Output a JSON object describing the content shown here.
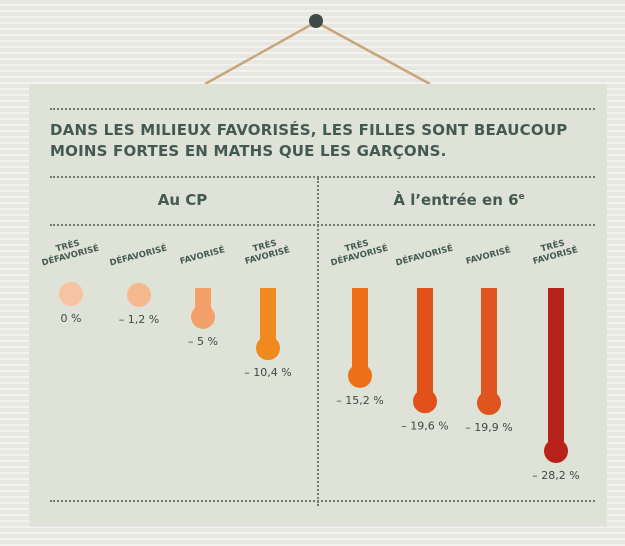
{
  "title": "DANS LES MILIEUX FAVORISÉS, LES FILLES SONT BEAUCOUP MOINS FORTES EN MATHS QUE LES GARÇONS.",
  "sections": {
    "left": "Au CP",
    "right": "À l’entrée en 6",
    "right_sup": "e"
  },
  "chart_data": [
    {
      "type": "bar",
      "title": "Au CP",
      "categories": [
        "TRÈS DÉFAVORISÉ",
        "DÉFAVORISÉ",
        "FAVORISÉ",
        "TRÈS FAVORISÉ"
      ],
      "values": [
        0,
        -1.2,
        -5,
        -10.4
      ],
      "value_labels": [
        "0 %",
        "– 1,2 %",
        "– 5 %",
        "– 10,4 %"
      ],
      "colors": [
        "#f6c3a3",
        "#f6b98f",
        "#f4a06a",
        "#f08a1e"
      ]
    },
    {
      "type": "bar",
      "title": "À l’entrée en 6e",
      "categories": [
        "TRÈS DÉFAVORISÉ",
        "DÉFAVORISÉ",
        "FAVORISÉ",
        "TRÈS FAVORISÉ"
      ],
      "values": [
        -15.2,
        -19.6,
        -19.9,
        -28.2
      ],
      "value_labels": [
        "– 15,2 %",
        "– 19,6 %",
        "– 19,9 %",
        "– 28,2 %"
      ],
      "colors": [
        "#ee6f1a",
        "#e2511a",
        "#e0541f",
        "#b9221b"
      ]
    }
  ]
}
